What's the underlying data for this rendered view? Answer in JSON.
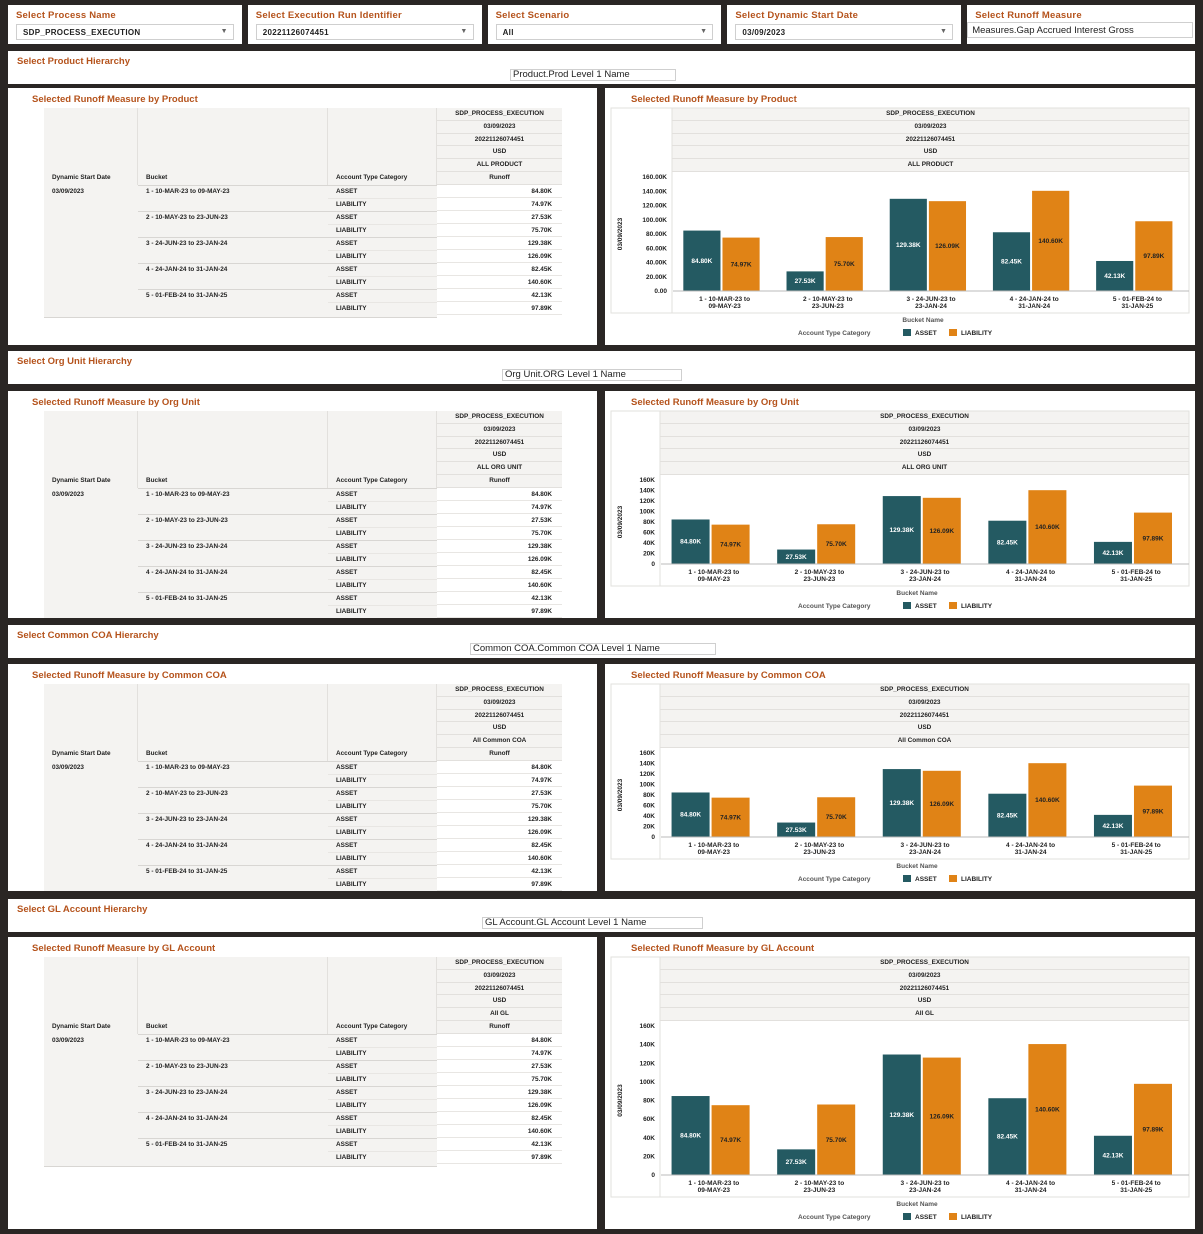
{
  "filters": [
    {
      "label": "Select Process Name",
      "value": "SDP_PROCESS_EXECUTION"
    },
    {
      "label": "Select Execution Run Identifier",
      "value": "20221126074451"
    },
    {
      "label": "Select Scenario",
      "value": "All"
    },
    {
      "label": "Select Dynamic Start Date",
      "value": "03/09/2023"
    },
    {
      "label": "Select Runoff Measure",
      "value": "Measures.Gap Accrued Interest Gross"
    }
  ],
  "sections": [
    {
      "hierarchy_label": "Select Product Hierarchy",
      "hierarchy_value": "Product.Prod Level 1 Name",
      "table_title": "Selected Runoff Measure by Product",
      "chart_title": "Selected Runoff Measure by Product",
      "header_rows": [
        "SDP_PROCESS_EXECUTION",
        "03/09/2023",
        "20221126074451",
        "USD",
        "ALL PRODUCT"
      ]
    },
    {
      "hierarchy_label": "Select Org Unit Hierarchy",
      "hierarchy_value": "Org Unit.ORG Level 1 Name",
      "table_title": "Selected Runoff Measure by Org Unit",
      "chart_title": "Selected Runoff Measure by Org Unit",
      "header_rows": [
        "SDP_PROCESS_EXECUTION",
        "03/09/2023",
        "20221126074451",
        "USD",
        "ALL ORG UNIT"
      ]
    },
    {
      "hierarchy_label": "Select Common COA Hierarchy",
      "hierarchy_value": "Common COA.Common COA Level 1 Name",
      "table_title": "Selected Runoff Measure by Common COA",
      "chart_title": "Selected Runoff Measure by Common COA",
      "header_rows": [
        "SDP_PROCESS_EXECUTION",
        "03/09/2023",
        "20221126074451",
        "USD",
        "All Common COA"
      ]
    },
    {
      "hierarchy_label": "Select GL Account Hierarchy",
      "hierarchy_value": "GL Account.GL Account Level 1 Name",
      "table_title": "Selected Runoff Measure by GL Account",
      "chart_title": "Selected Runoff Measure by GL Account",
      "header_rows": [
        "SDP_PROCESS_EXECUTION",
        "03/09/2023",
        "20221126074451",
        "USD",
        "All GL"
      ]
    }
  ],
  "table": {
    "col_dynamic_start_date": "Dynamic Start Date",
    "col_bucket": "Bucket",
    "col_account_type": "Account Type Category",
    "col_runoff": "Runoff",
    "dynamic_start_date": "03/09/2023",
    "buckets": [
      {
        "name": "1 - 10-MAR-23 to 09-MAY-23",
        "asset": "84.80K",
        "liability": "74.97K"
      },
      {
        "name": "2 - 10-MAY-23 to 23-JUN-23",
        "asset": "27.53K",
        "liability": "75.70K"
      },
      {
        "name": "3 - 24-JUN-23 to 23-JAN-24",
        "asset": "129.38K",
        "liability": "126.09K"
      },
      {
        "name": "4 - 24-JAN-24 to 31-JAN-24",
        "asset": "82.45K",
        "liability": "140.60K"
      },
      {
        "name": "5 - 01-FEB-24 to 31-JAN-25",
        "asset": "42.13K",
        "liability": "97.89K"
      }
    ],
    "asset_label": "ASSET",
    "liability_label": "LIABILITY"
  },
  "chart_data": [
    {
      "type": "bar",
      "title": "Selected Runoff Measure by Product",
      "categories": [
        "1 - 10-MAR-23 to 09-MAY-23",
        "2 - 10-MAY-23 to 23-JUN-23",
        "3 - 24-JUN-23 to 23-JAN-24",
        "4 - 24-JAN-24 to 31-JAN-24",
        "5 - 01-FEB-24 to 31-JAN-25"
      ],
      "series": [
        {
          "name": "ASSET",
          "color": "#245a62",
          "values": [
            84800,
            27530,
            129380,
            82450,
            42130
          ],
          "labels": [
            "84.80K",
            "27.53K",
            "129.38K",
            "82.45K",
            "42.13K"
          ]
        },
        {
          "name": "LIABILITY",
          "color": "#e08316",
          "values": [
            74970,
            75700,
            126090,
            140600,
            97890
          ],
          "labels": [
            "74.97K",
            "75.70K",
            "126.09K",
            "140.60K",
            "97.89K"
          ]
        }
      ],
      "yticks": [
        "0.00",
        "20.00K",
        "40.00K",
        "60.00K",
        "80.00K",
        "100.00K",
        "120.00K",
        "140.00K",
        "160.00K"
      ],
      "ylim": [
        0,
        160000
      ],
      "ylabel": "03/09/2023",
      "xlabel": "Bucket Name",
      "legend_title": "Account Type Category",
      "legend_position": "bottom"
    },
    {
      "type": "bar",
      "title": "Selected Runoff Measure by Org Unit",
      "categories": [
        "1 - 10-MAR-23 to 09-MAY-23",
        "2 - 10-MAY-23 to 23-JUN-23",
        "3 - 24-JUN-23 to 23-JAN-24",
        "4 - 24-JAN-24 to 31-JAN-24",
        "5 - 01-FEB-24 to 31-JAN-25"
      ],
      "series": [
        {
          "name": "ASSET",
          "color": "#245a62",
          "values": [
            84800,
            27530,
            129380,
            82450,
            42130
          ],
          "labels": [
            "84.80K",
            "27.53K",
            "129.38K",
            "82.45K",
            "42.13K"
          ]
        },
        {
          "name": "LIABILITY",
          "color": "#e08316",
          "values": [
            74970,
            75700,
            126090,
            140600,
            97890
          ],
          "labels": [
            "74.97K",
            "75.70K",
            "126.09K",
            "140.60K",
            "97.89K"
          ]
        }
      ],
      "yticks": [
        "0",
        "20K",
        "40K",
        "60K",
        "80K",
        "100K",
        "120K",
        "140K",
        "160K"
      ],
      "ylim": [
        0,
        160000
      ],
      "ylabel": "03/09/2023",
      "xlabel": "Bucket Name",
      "legend_title": "Account Type Category",
      "legend_position": "bottom"
    },
    {
      "type": "bar",
      "title": "Selected Runoff Measure by Common COA",
      "categories": [
        "1 - 10-MAR-23 to 09-MAY-23",
        "2 - 10-MAY-23 to 23-JUN-23",
        "3 - 24-JUN-23 to 23-JAN-24",
        "4 - 24-JAN-24 to 31-JAN-24",
        "5 - 01-FEB-24 to 31-JAN-25"
      ],
      "series": [
        {
          "name": "ASSET",
          "color": "#245a62",
          "values": [
            84800,
            27530,
            129380,
            82450,
            42130
          ],
          "labels": [
            "84.80K",
            "27.53K",
            "129.38K",
            "82.45K",
            "42.13K"
          ]
        },
        {
          "name": "LIABILITY",
          "color": "#e08316",
          "values": [
            74970,
            75700,
            126090,
            140600,
            97890
          ],
          "labels": [
            "74.97K",
            "75.70K",
            "126.09K",
            "140.60K",
            "97.89K"
          ]
        }
      ],
      "yticks": [
        "0",
        "20K",
        "40K",
        "60K",
        "80K",
        "100K",
        "120K",
        "140K",
        "160K"
      ],
      "ylim": [
        0,
        160000
      ],
      "ylabel": "03/09/2023",
      "xlabel": "Bucket Name",
      "legend_title": "Account Type Category",
      "legend_position": "bottom"
    },
    {
      "type": "bar",
      "title": "Selected Runoff Measure by GL Account",
      "categories": [
        "1 - 10-MAR-23 to 09-MAY-23",
        "2 - 10-MAY-23 to 23-JUN-23",
        "3 - 24-JUN-23 to 23-JAN-24",
        "4 - 24-JAN-24 to 31-JAN-24",
        "5 - 01-FEB-24 to 31-JAN-25"
      ],
      "series": [
        {
          "name": "ASSET",
          "color": "#245a62",
          "values": [
            84800,
            27530,
            129380,
            82450,
            42130
          ],
          "labels": [
            "84.80K",
            "27.53K",
            "129.38K",
            "82.45K",
            "42.13K"
          ]
        },
        {
          "name": "LIABILITY",
          "color": "#e08316",
          "values": [
            74970,
            75700,
            126090,
            140600,
            97890
          ],
          "labels": [
            "74.97K",
            "75.70K",
            "126.09K",
            "140.60K",
            "97.89K"
          ]
        }
      ],
      "yticks": [
        "0",
        "20K",
        "40K",
        "60K",
        "80K",
        "100K",
        "120K",
        "140K",
        "160K"
      ],
      "ylim": [
        0,
        160000
      ],
      "ylabel": "03/09/2023",
      "xlabel": "Bucket Name",
      "legend_title": "Account Type Category",
      "legend_position": "bottom"
    }
  ]
}
